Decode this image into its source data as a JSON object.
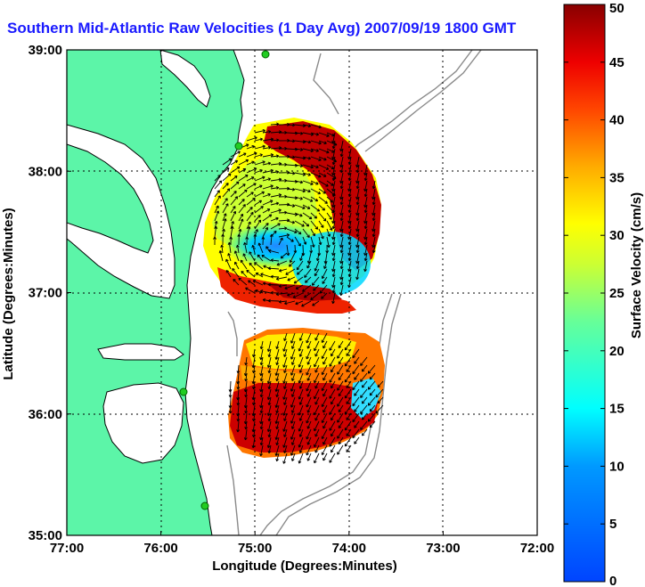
{
  "title": "Southern Mid-Atlantic Raw Velocities (1 Day Avg) 2007/09/19 1800 GMT",
  "map": {
    "xlabel": "Longitude (Degrees:Minutes)",
    "ylabel": "Latitude (Degrees:Minutes)",
    "x_ticks": [
      "77:00",
      "76:00",
      "75:00",
      "74:00",
      "73:00",
      "72:00"
    ],
    "y_ticks": [
      "35:00",
      "36:00",
      "37:00",
      "38:00",
      "39:00"
    ],
    "lon_range": [
      -77,
      -72
    ],
    "lat_range": [
      35,
      39
    ],
    "grid": true,
    "colors": {
      "land": "#5cf5a8",
      "ocean": "#ffffff",
      "coast_outline": "#000000",
      "bathymetry": "#808080",
      "station": "#22cc22",
      "arrow": "#000000"
    }
  },
  "colorbar": {
    "label": "Surface Velocity (cm/s)",
    "ticks": [
      "0",
      "5",
      "10",
      "15",
      "20",
      "25",
      "30",
      "35",
      "40",
      "45",
      "50"
    ],
    "range": [
      0,
      50
    ],
    "colormap": "jet"
  }
}
